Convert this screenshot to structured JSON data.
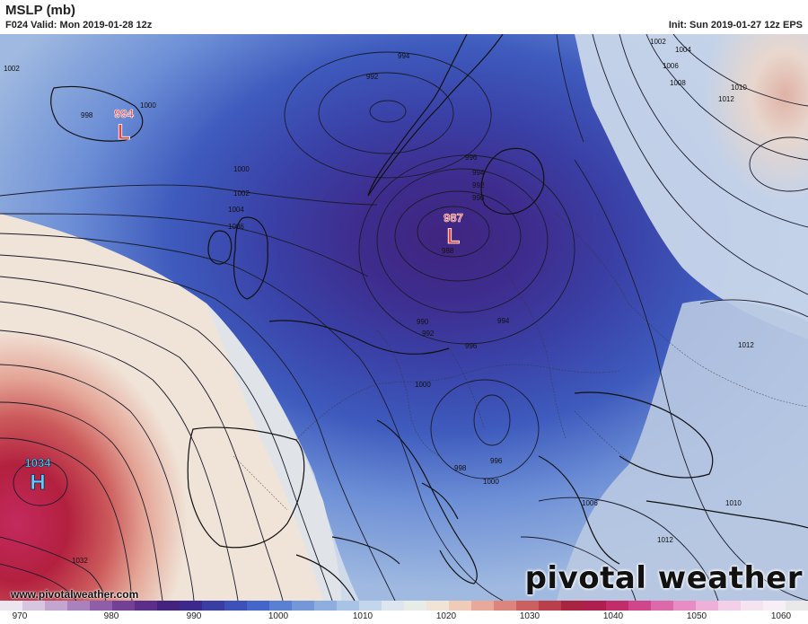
{
  "header": {
    "title": "MSLP (mb)",
    "valid": "F024 Valid: Mon 2019-01-28 12z",
    "init": "Init: Sun 2019-01-27 12z EPS"
  },
  "centers": [
    {
      "type": "L",
      "value": "994",
      "color": "#e8413c"
    },
    {
      "type": "L",
      "value": "987",
      "color": "#e8413c"
    },
    {
      "type": "H",
      "value": "1034",
      "color": "#5fd0ff"
    }
  ],
  "isobar_labels": [
    "1002",
    "998",
    "1000",
    "994",
    "992",
    "1000",
    "1002",
    "1004",
    "1006",
    "996",
    "994",
    "992",
    "990",
    "988",
    "990",
    "992",
    "996",
    "994",
    "1000",
    "998",
    "996",
    "1000",
    "1002",
    "1004",
    "1006",
    "1008",
    "1010",
    "1012",
    "1012",
    "1006",
    "1012",
    "1010",
    "1032"
  ],
  "colorbar": {
    "ticks": [
      "970",
      "980",
      "990",
      "1000",
      "1010",
      "1020",
      "1030",
      "1040",
      "1050",
      "1060"
    ],
    "colors": [
      "#ece6f0",
      "#d7c6e0",
      "#c2a6cf",
      "#a982bd",
      "#8e5ea8",
      "#744096",
      "#5b2e8a",
      "#44237f",
      "#3b2a8c",
      "#3a3ea3",
      "#3d52b8",
      "#4466c9",
      "#5a80d3",
      "#7497da",
      "#8eaee0",
      "#a9c3e6",
      "#c3d6ec",
      "#dde6ef",
      "#e8ece6",
      "#f0e4d6",
      "#f0cbb8",
      "#e8a99a",
      "#dc857c",
      "#cc6060",
      "#ba3f4b",
      "#a82440",
      "#b01e4f",
      "#c22c68",
      "#d1468a",
      "#dd69aa",
      "#e78cc4",
      "#eeb0d8",
      "#f3cfe8",
      "#f6e3f1",
      "#f8eef6",
      "#e9e9e9"
    ]
  },
  "footer": {
    "website": "www.pivotalweather.com",
    "logo": "pivotal weather"
  }
}
